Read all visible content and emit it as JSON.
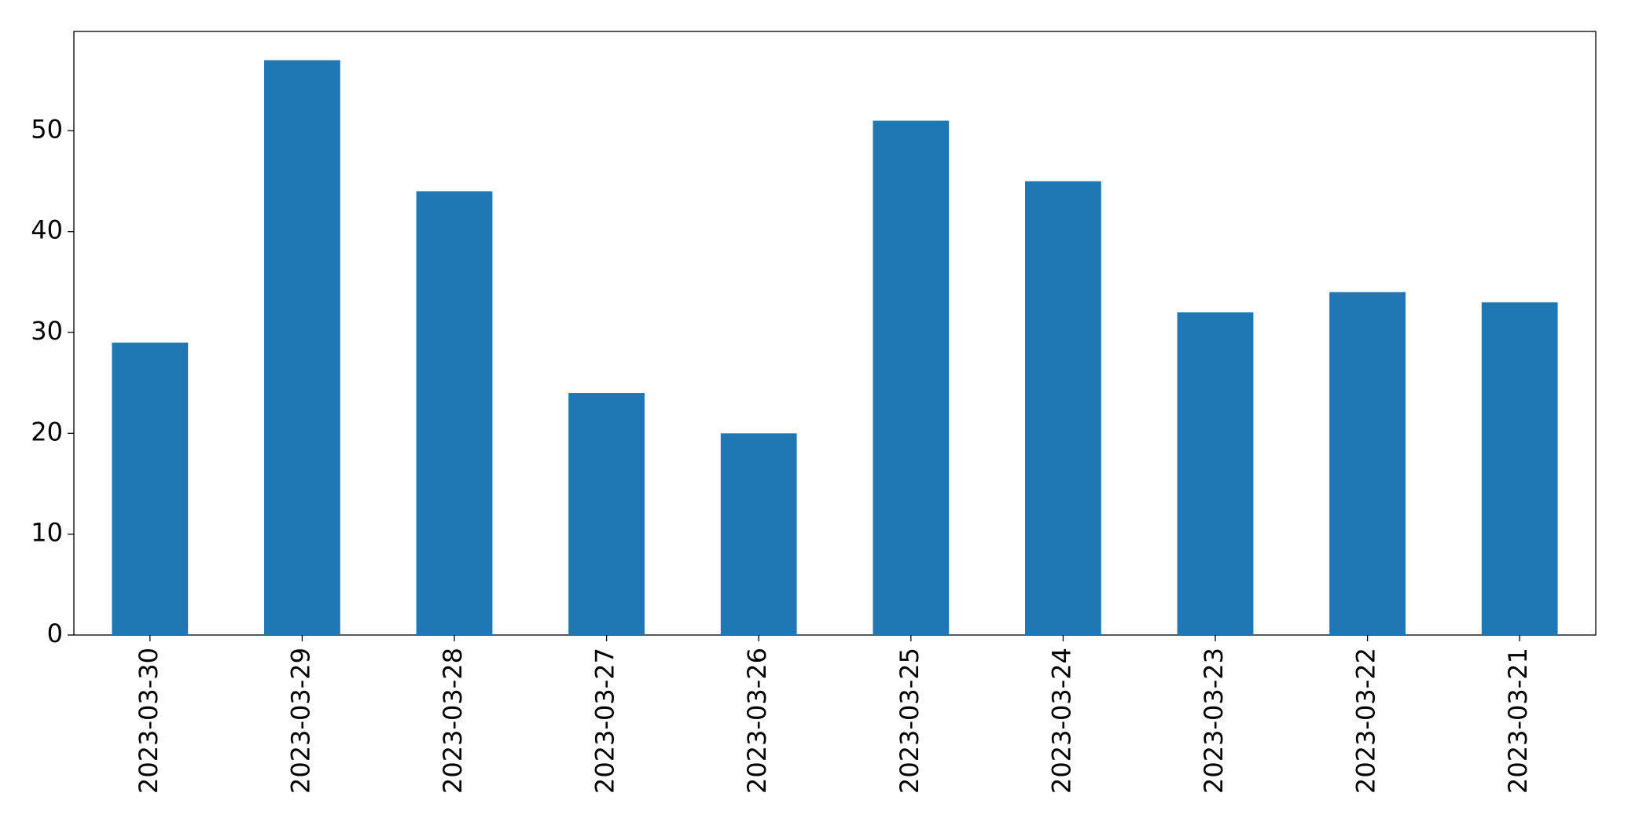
{
  "chart_data": {
    "type": "bar",
    "categories": [
      "2023-03-30",
      "2023-03-29",
      "2023-03-28",
      "2023-03-27",
      "2023-03-26",
      "2023-03-25",
      "2023-03-24",
      "2023-03-23",
      "2023-03-22",
      "2023-03-21"
    ],
    "values": [
      29,
      57,
      44,
      24,
      20,
      51,
      45,
      32,
      34,
      33
    ],
    "color": "#1f77b4",
    "ylim": [
      0,
      59.85
    ],
    "yticks": [
      0,
      10,
      20,
      30,
      40,
      50
    ],
    "grid": false
  }
}
